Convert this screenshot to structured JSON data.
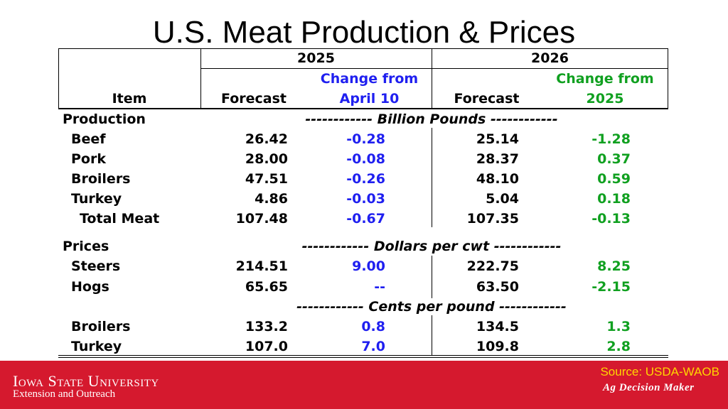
{
  "title": "U.S. Meat Production & Prices",
  "header": {
    "year1": "2025",
    "year2": "2026",
    "item": "Item",
    "forecast1": "Forecast",
    "change1_line1": "Change from",
    "change1_line2": "April 10",
    "forecast2": "Forecast",
    "change2_line1": "Change from",
    "change2_line2": "2025"
  },
  "sections": {
    "production": {
      "label": "Production",
      "unit": "------------ Billion Pounds ------------",
      "rows": [
        {
          "item": "Beef",
          "f1": "26.42",
          "c1": "-0.28",
          "f2": "25.14",
          "c2": "-1.28"
        },
        {
          "item": "Pork",
          "f1": "28.00",
          "c1": "-0.08",
          "f2": "28.37",
          "c2": "0.37"
        },
        {
          "item": "Broilers",
          "f1": "47.51",
          "c1": "-0.26",
          "f2": "48.10",
          "c2": "0.59"
        },
        {
          "item": "Turkey",
          "f1": "4.86",
          "c1": "-0.03",
          "f2": "5.04",
          "c2": "0.18"
        },
        {
          "item": "Total Meat",
          "f1": "107.48",
          "c1": "-0.67",
          "f2": "107.35",
          "c2": "-0.13"
        }
      ]
    },
    "prices": {
      "label": "Prices",
      "unit": "------------ Dollars per cwt ------------",
      "rows": [
        {
          "item": "Steers",
          "f1": "214.51",
          "c1": "9.00",
          "f2": "222.75",
          "c2": "8.25"
        },
        {
          "item": "Hogs",
          "f1": "65.65",
          "c1": "--",
          "f2": "63.50",
          "c2": "-2.15"
        }
      ]
    },
    "poultry_prices": {
      "unit": "------------ Cents per pound ------------",
      "rows": [
        {
          "item": "Broilers",
          "f1": "133.2",
          "c1": "0.8",
          "f2": "134.5",
          "c2": "1.3"
        },
        {
          "item": "Turkey",
          "f1": "107.0",
          "c1": "7.0",
          "f2": "109.8",
          "c2": "2.8"
        }
      ]
    }
  },
  "footer": {
    "university": "Iowa State University",
    "extension": "Extension and Outreach",
    "source": "Source: USDA-WAOB",
    "brand": "Ag Decision Maker"
  },
  "colors": {
    "change_2025": "#1f1ff0",
    "change_2026": "#10a020",
    "footer_bg": "#d5192e",
    "source_text": "#ffd700"
  }
}
